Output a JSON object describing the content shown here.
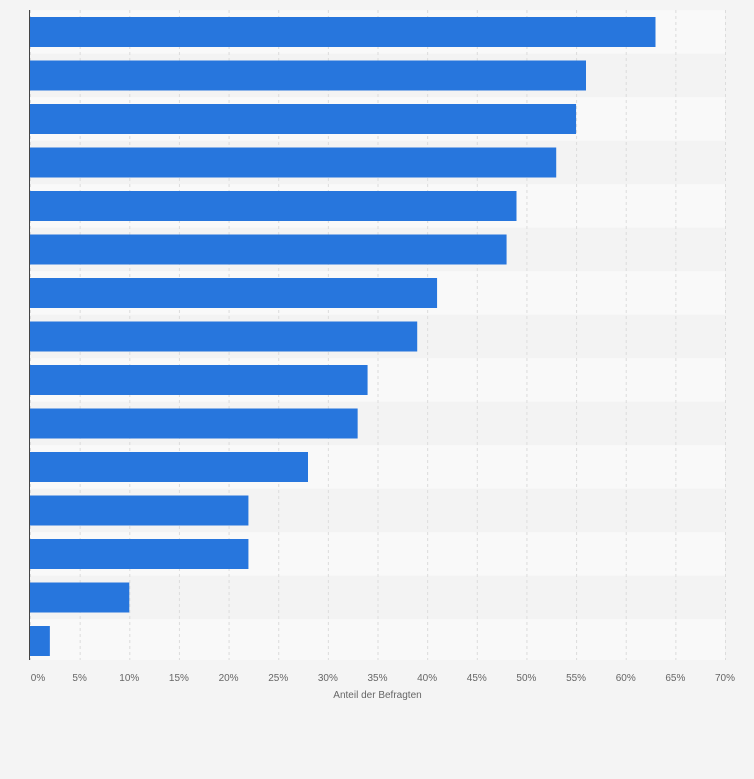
{
  "chart_data": {
    "type": "bar",
    "orientation": "horizontal",
    "categories": [
      "",
      "",
      "",
      "",
      "",
      "",
      "",
      "",
      "",
      "",
      "",
      "",
      "",
      "",
      ""
    ],
    "values": [
      63,
      56,
      55,
      53,
      49,
      48,
      41,
      39,
      34,
      33,
      28,
      22,
      22,
      10,
      2
    ],
    "xlabel": "Anteil der Befragten",
    "ylabel": "",
    "xlim": [
      0,
      70
    ],
    "x_ticks": [
      "0%",
      "5%",
      "10%",
      "15%",
      "20%",
      "25%",
      "30%",
      "35%",
      "40%",
      "45%",
      "50%",
      "55%",
      "60%",
      "65%",
      "70%"
    ],
    "grid": true,
    "colors": {
      "bar": "#2776dd",
      "background": "#f4f4f4",
      "band_light": "#f9f9f9",
      "band_dark": "#f3f3f3",
      "grid": "#dcdcdc",
      "axis": "#444444"
    }
  }
}
